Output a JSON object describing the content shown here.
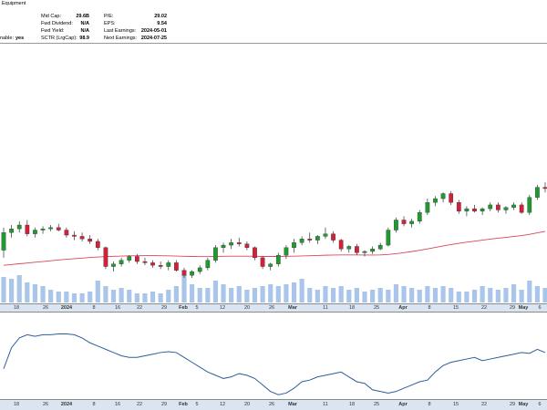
{
  "header": {
    "sector": "Equipment",
    "stats_left": [
      {
        "label": "Mid Cap:",
        "value": "29.6B"
      },
      {
        "label": "Fwd Dividend:",
        "value": "N/A"
      },
      {
        "label": "Fwd Yield:",
        "value": "N/A"
      },
      {
        "label": "SCTR (LrgCap):",
        "value": "98.9"
      }
    ],
    "stats_right": [
      {
        "label": "P/E:",
        "value": "29.02"
      },
      {
        "label": "EPS:",
        "value": "9.54"
      },
      {
        "label": "Last Earnings:",
        "value": "2024-05-01"
      },
      {
        "label": "Next Earnings:",
        "value": "2024-07-25"
      }
    ],
    "optionable_label": "nable:",
    "optionable_value": "yes"
  },
  "colors": {
    "up": "#1f9a2e",
    "down": "#d0223a",
    "ma": "#d9475a",
    "volume": "#a9c6ea",
    "indicator": "#2f5d9b",
    "axis_bg": "#dbe5f1"
  },
  "axis_labels": [
    {
      "text": "18",
      "bold": false
    },
    {
      "text": "26",
      "bold": false
    },
    {
      "text": "2024",
      "bold": true
    },
    {
      "text": "8",
      "bold": false
    },
    {
      "text": "16",
      "bold": false
    },
    {
      "text": "22",
      "bold": false
    },
    {
      "text": "29",
      "bold": false
    },
    {
      "text": "Feb",
      "bold": true
    },
    {
      "text": "5",
      "bold": false
    },
    {
      "text": "12",
      "bold": false
    },
    {
      "text": "20",
      "bold": false
    },
    {
      "text": "26",
      "bold": false
    },
    {
      "text": "Mar",
      "bold": true
    },
    {
      "text": "11",
      "bold": false
    },
    {
      "text": "18",
      "bold": false
    },
    {
      "text": "25",
      "bold": false
    },
    {
      "text": "Apr",
      "bold": true
    },
    {
      "text": "8",
      "bold": false
    },
    {
      "text": "15",
      "bold": false
    },
    {
      "text": "22",
      "bold": false
    },
    {
      "text": "29",
      "bold": false
    },
    {
      "text": "May",
      "bold": true
    },
    {
      "text": "6",
      "bold": false
    }
  ],
  "chart_data": {
    "type": "candlestick",
    "price_range": [
      0,
      100
    ],
    "candles": [
      {
        "o": 30,
        "h": 48,
        "l": 24,
        "c": 44
      },
      {
        "o": 44,
        "h": 50,
        "l": 40,
        "c": 47
      },
      {
        "o": 47,
        "h": 53,
        "l": 44,
        "c": 50
      },
      {
        "o": 50,
        "h": 54,
        "l": 41,
        "c": 43
      },
      {
        "o": 43,
        "h": 48,
        "l": 40,
        "c": 46
      },
      {
        "o": 46,
        "h": 49,
        "l": 43,
        "c": 47
      },
      {
        "o": 47,
        "h": 50,
        "l": 45,
        "c": 48
      },
      {
        "o": 48,
        "h": 51,
        "l": 45,
        "c": 46
      },
      {
        "o": 46,
        "h": 48,
        "l": 40,
        "c": 42
      },
      {
        "o": 42,
        "h": 45,
        "l": 38,
        "c": 41
      },
      {
        "o": 41,
        "h": 44,
        "l": 37,
        "c": 39
      },
      {
        "o": 39,
        "h": 42,
        "l": 35,
        "c": 37
      },
      {
        "o": 37,
        "h": 39,
        "l": 30,
        "c": 32
      },
      {
        "o": 32,
        "h": 33,
        "l": 15,
        "c": 17
      },
      {
        "o": 17,
        "h": 21,
        "l": 13,
        "c": 19
      },
      {
        "o": 19,
        "h": 24,
        "l": 17,
        "c": 22
      },
      {
        "o": 22,
        "h": 26,
        "l": 20,
        "c": 25
      },
      {
        "o": 25,
        "h": 27,
        "l": 19,
        "c": 21
      },
      {
        "o": 21,
        "h": 24,
        "l": 18,
        "c": 20
      },
      {
        "o": 20,
        "h": 22,
        "l": 16,
        "c": 18
      },
      {
        "o": 18,
        "h": 21,
        "l": 15,
        "c": 17
      },
      {
        "o": 17,
        "h": 22,
        "l": 14,
        "c": 20
      },
      {
        "o": 20,
        "h": 22,
        "l": 13,
        "c": 14
      },
      {
        "o": 14,
        "h": 16,
        "l": 8,
        "c": 10
      },
      {
        "o": 10,
        "h": 14,
        "l": 8,
        "c": 13
      },
      {
        "o": 13,
        "h": 18,
        "l": 11,
        "c": 16
      },
      {
        "o": 16,
        "h": 24,
        "l": 14,
        "c": 22
      },
      {
        "o": 22,
        "h": 34,
        "l": 20,
        "c": 32
      },
      {
        "o": 32,
        "h": 36,
        "l": 28,
        "c": 34
      },
      {
        "o": 34,
        "h": 39,
        "l": 31,
        "c": 36
      },
      {
        "o": 36,
        "h": 40,
        "l": 33,
        "c": 35
      },
      {
        "o": 35,
        "h": 37,
        "l": 30,
        "c": 32
      },
      {
        "o": 32,
        "h": 33,
        "l": 22,
        "c": 24
      },
      {
        "o": 24,
        "h": 25,
        "l": 15,
        "c": 17
      },
      {
        "o": 17,
        "h": 20,
        "l": 14,
        "c": 19
      },
      {
        "o": 19,
        "h": 28,
        "l": 17,
        "c": 26
      },
      {
        "o": 26,
        "h": 34,
        "l": 23,
        "c": 32
      },
      {
        "o": 32,
        "h": 39,
        "l": 28,
        "c": 36
      },
      {
        "o": 36,
        "h": 41,
        "l": 34,
        "c": 39
      },
      {
        "o": 39,
        "h": 44,
        "l": 36,
        "c": 38
      },
      {
        "o": 38,
        "h": 42,
        "l": 35,
        "c": 41
      },
      {
        "o": 41,
        "h": 48,
        "l": 39,
        "c": 43
      },
      {
        "o": 43,
        "h": 45,
        "l": 36,
        "c": 38
      },
      {
        "o": 38,
        "h": 39,
        "l": 29,
        "c": 31
      },
      {
        "o": 31,
        "h": 34,
        "l": 28,
        "c": 33
      },
      {
        "o": 33,
        "h": 35,
        "l": 26,
        "c": 28
      },
      {
        "o": 28,
        "h": 30,
        "l": 25,
        "c": 29
      },
      {
        "o": 29,
        "h": 33,
        "l": 27,
        "c": 31
      },
      {
        "o": 31,
        "h": 36,
        "l": 30,
        "c": 34
      },
      {
        "o": 34,
        "h": 48,
        "l": 33,
        "c": 46
      },
      {
        "o": 46,
        "h": 56,
        "l": 44,
        "c": 54
      },
      {
        "o": 54,
        "h": 57,
        "l": 49,
        "c": 51
      },
      {
        "o": 51,
        "h": 55,
        "l": 48,
        "c": 53
      },
      {
        "o": 53,
        "h": 62,
        "l": 51,
        "c": 60
      },
      {
        "o": 60,
        "h": 71,
        "l": 58,
        "c": 68
      },
      {
        "o": 68,
        "h": 73,
        "l": 65,
        "c": 71
      },
      {
        "o": 71,
        "h": 76,
        "l": 68,
        "c": 75
      },
      {
        "o": 75,
        "h": 77,
        "l": 66,
        "c": 68
      },
      {
        "o": 68,
        "h": 70,
        "l": 59,
        "c": 61
      },
      {
        "o": 61,
        "h": 65,
        "l": 57,
        "c": 63
      },
      {
        "o": 63,
        "h": 66,
        "l": 60,
        "c": 61
      },
      {
        "o": 61,
        "h": 64,
        "l": 58,
        "c": 63
      },
      {
        "o": 63,
        "h": 68,
        "l": 61,
        "c": 66
      },
      {
        "o": 66,
        "h": 68,
        "l": 60,
        "c": 62
      },
      {
        "o": 62,
        "h": 65,
        "l": 59,
        "c": 64
      },
      {
        "o": 64,
        "h": 68,
        "l": 62,
        "c": 66
      },
      {
        "o": 66,
        "h": 68,
        "l": 59,
        "c": 60
      },
      {
        "o": 60,
        "h": 74,
        "l": 58,
        "c": 72
      },
      {
        "o": 72,
        "h": 82,
        "l": 70,
        "c": 80
      },
      {
        "o": 80,
        "h": 84,
        "l": 76,
        "c": 79
      }
    ],
    "moving_average": [
      18,
      18.6,
      19.2,
      19.8,
      20.4,
      21,
      21.6,
      22.2,
      22.8,
      23.2,
      23.7,
      24.2,
      24.6,
      24.9,
      25.1,
      25.3,
      25.5,
      25.6,
      25.7,
      25.7,
      25.6,
      25.5,
      25.3,
      25.1,
      25,
      24.9,
      24.9,
      25,
      25.1,
      25.2,
      25.2,
      25.2,
      25.1,
      25,
      25,
      25,
      25.1,
      25.2,
      25.4,
      25.6,
      25.8,
      26,
      26.1,
      26.2,
      26.2,
      26.2,
      26.1,
      26.1,
      26.2,
      26.6,
      27.2,
      28,
      28.9,
      29.9,
      31,
      32.2,
      33.4,
      34.5,
      35.5,
      36.4,
      37.2,
      38,
      38.8,
      39.5,
      40.2,
      40.9,
      41.6,
      42.6,
      43.8,
      45
    ]
  },
  "volume_data": [
    14,
    13,
    15,
    11,
    10,
    9,
    7,
    6,
    6,
    5,
    5,
    6,
    12,
    9,
    7,
    8,
    7,
    5,
    5,
    6,
    5,
    7,
    9,
    15,
    10,
    8,
    8,
    12,
    10,
    8,
    9,
    7,
    8,
    9,
    10,
    9,
    10,
    11,
    13,
    8,
    7,
    9,
    8,
    9,
    7,
    8,
    6,
    7,
    8,
    7,
    10,
    9,
    8,
    7,
    9,
    8,
    9,
    8,
    6,
    6,
    7,
    9,
    8,
    7,
    8,
    10,
    7,
    12,
    9,
    8
  ],
  "indicator_data": [
    34,
    60,
    72,
    76,
    74,
    76,
    76,
    77,
    77,
    76,
    72,
    66,
    62,
    58,
    54,
    50,
    48,
    48,
    50,
    52,
    54,
    55,
    54,
    48,
    42,
    36,
    30,
    26,
    22,
    24,
    28,
    26,
    22,
    14,
    6,
    2,
    4,
    10,
    18,
    20,
    24,
    26,
    28,
    30,
    24,
    18,
    16,
    8,
    6,
    4,
    6,
    10,
    14,
    18,
    20,
    30,
    38,
    42,
    44,
    46,
    48,
    44,
    46,
    48,
    50,
    52,
    54,
    53,
    58,
    54
  ]
}
